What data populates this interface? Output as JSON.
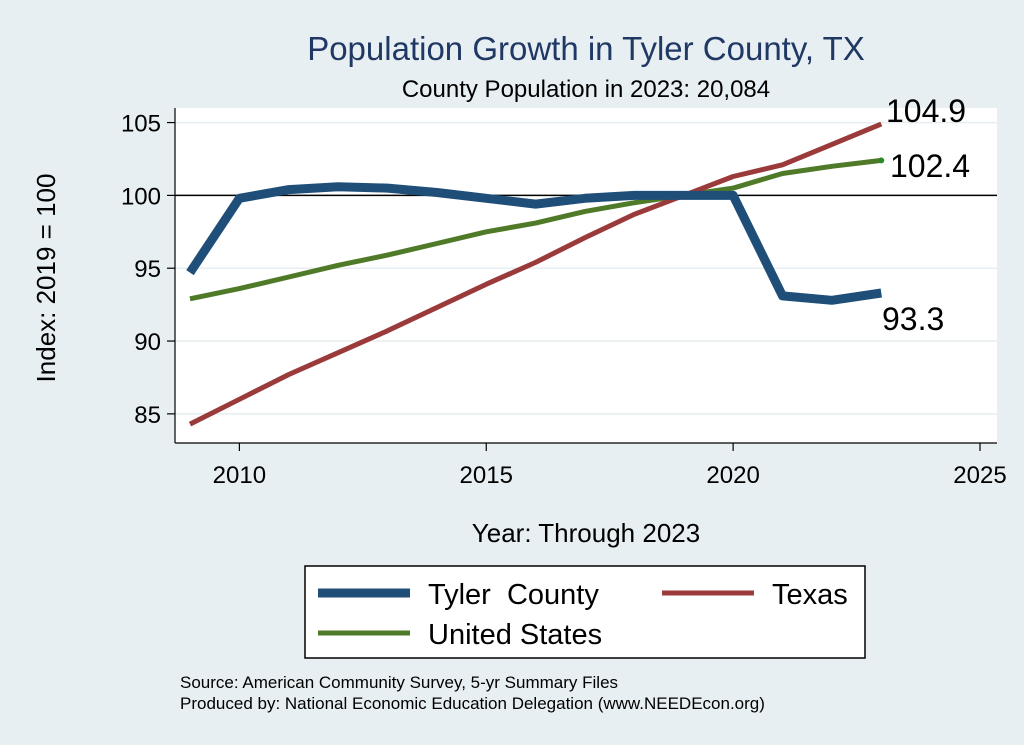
{
  "chart_data": {
    "type": "line",
    "title": "Population Growth in Tyler County, TX",
    "subtitle": "County Population in 2023: 20,084",
    "xlabel": "Year: Through 2023",
    "ylabel": "Index: 2019 = 100",
    "xlim": [
      2009,
      2025
    ],
    "ylim": [
      83,
      106
    ],
    "xticks": [
      2010,
      2015,
      2020,
      2025
    ],
    "yticks": [
      85,
      90,
      95,
      100,
      105
    ],
    "grid": true,
    "reference_line": 100,
    "legend_position": "bottom",
    "series": [
      {
        "name": "Tyler  County",
        "color": "#1f4e79",
        "x": [
          2009,
          2010,
          2011,
          2012,
          2013,
          2014,
          2015,
          2016,
          2017,
          2018,
          2019,
          2020,
          2021,
          2022,
          2023
        ],
        "values": [
          94.7,
          99.8,
          100.4,
          100.6,
          100.5,
          100.2,
          99.8,
          99.4,
          99.8,
          100.0,
          100.0,
          100.0,
          93.1,
          92.8,
          93.3
        ]
      },
      {
        "name": "Texas",
        "color": "#9b3a3a",
        "x": [
          2009,
          2010,
          2011,
          2012,
          2013,
          2014,
          2015,
          2016,
          2017,
          2018,
          2019,
          2020,
          2021,
          2022,
          2023
        ],
        "values": [
          84.3,
          86.0,
          87.7,
          89.2,
          90.7,
          92.3,
          93.9,
          95.4,
          97.1,
          98.7,
          100.0,
          101.3,
          102.1,
          103.5,
          104.9
        ]
      },
      {
        "name": "United States",
        "color": "#4f7a28",
        "x": [
          2009,
          2010,
          2011,
          2012,
          2013,
          2014,
          2015,
          2016,
          2017,
          2018,
          2019,
          2020,
          2021,
          2022,
          2023
        ],
        "values": [
          92.9,
          93.6,
          94.4,
          95.2,
          95.9,
          96.7,
          97.5,
          98.1,
          98.9,
          99.5,
          100.0,
          100.5,
          101.5,
          102.0,
          102.4
        ]
      }
    ],
    "end_labels": [
      "93.3",
      "104.9",
      "102.4"
    ]
  },
  "source_line": "Source: American Community Survey, 5-yr Summary Files",
  "produced_line": "Produced by: National Economic Education Delegation (www.NEEDEcon.org)"
}
